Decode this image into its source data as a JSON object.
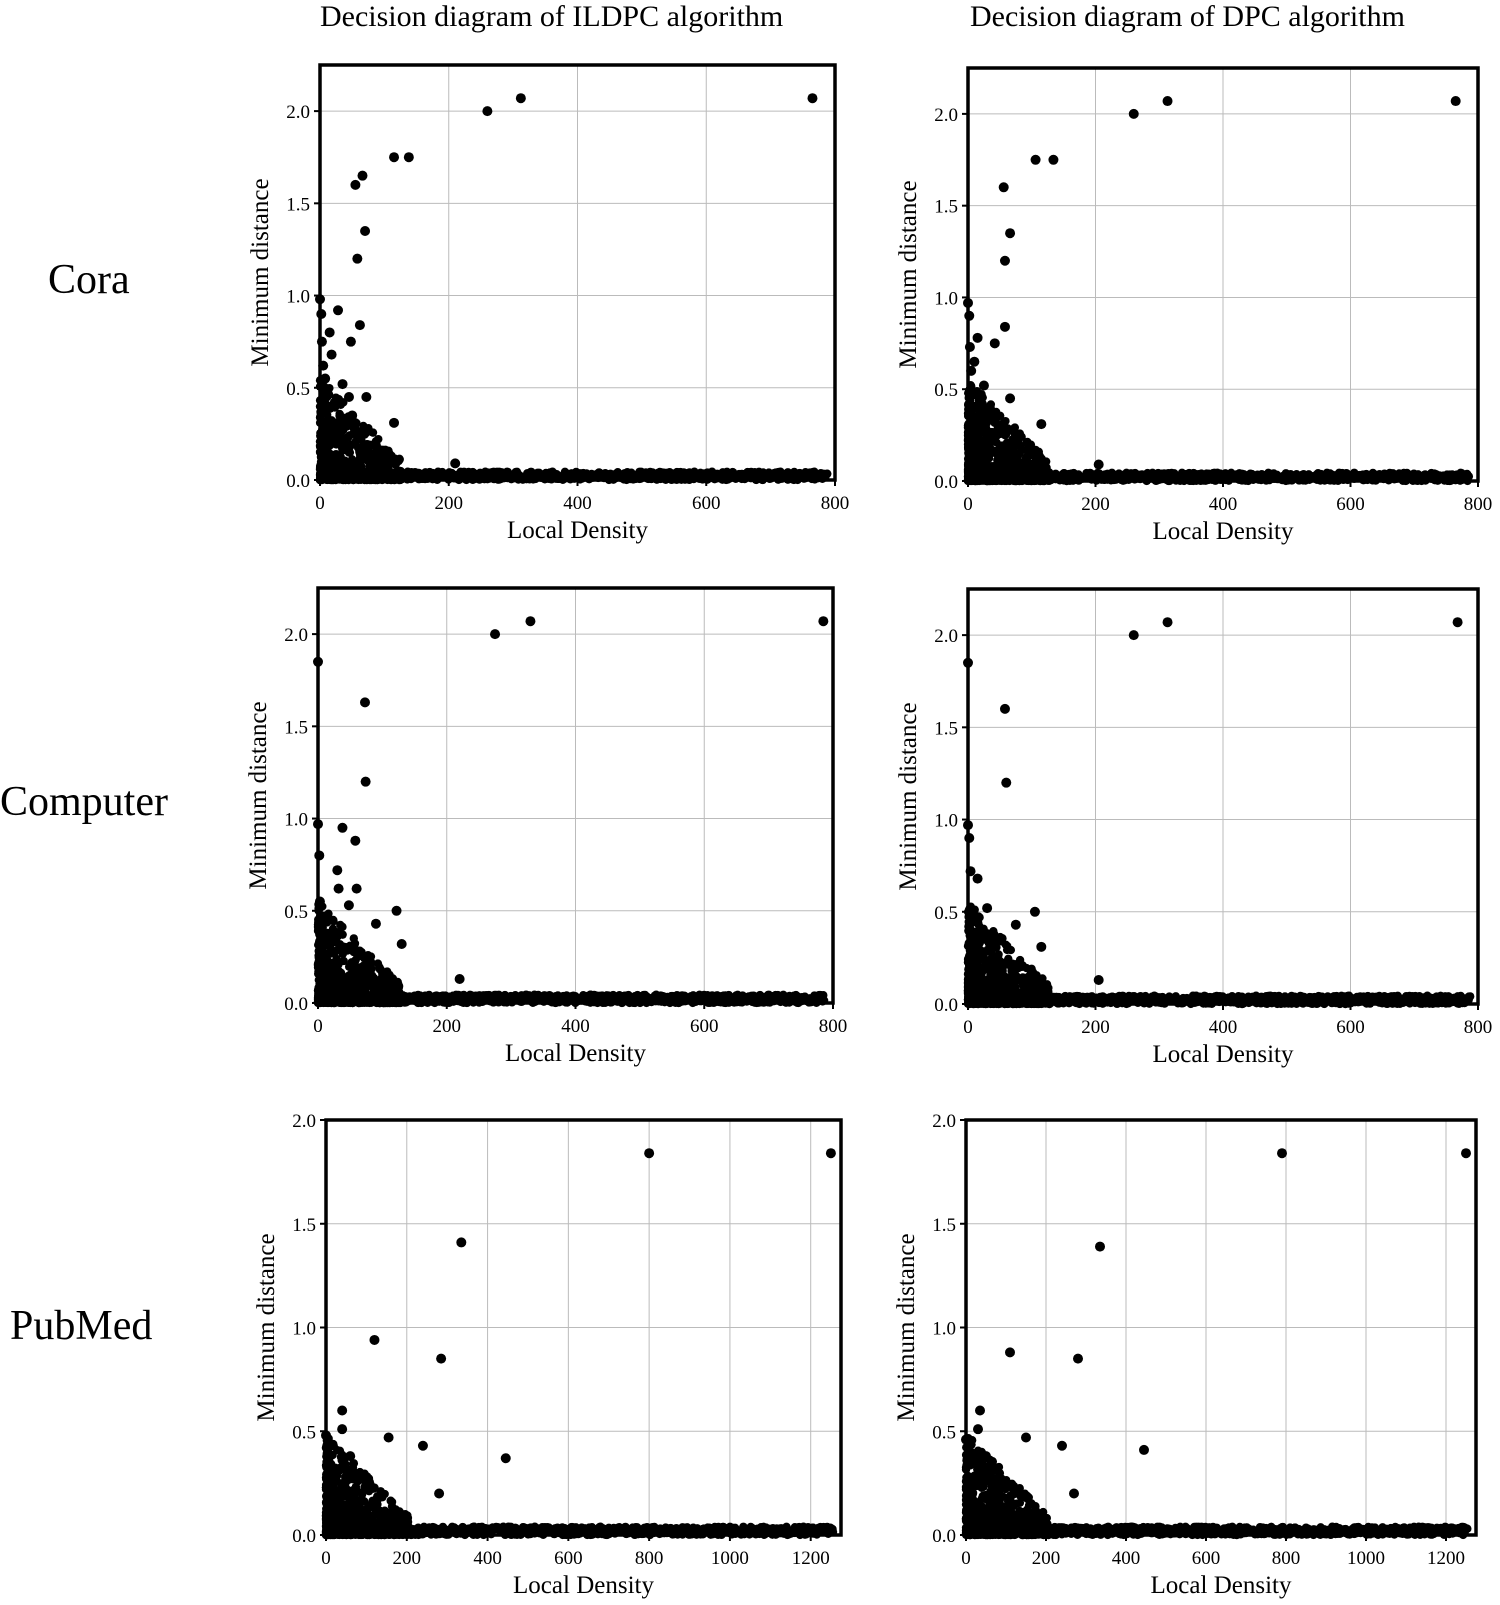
{
  "columns": [
    "Decision diagram of ILDPC algorithm",
    "Decision diagram of DPC algorithm"
  ],
  "rows": [
    "Cora",
    "Computer",
    "PubMed"
  ],
  "colors": {
    "point": "#000000",
    "grid": "#bbbbbb",
    "frame": "#000000"
  },
  "chart_data": [
    {
      "type": "scatter",
      "row": "Cora",
      "column": "Decision diagram of ILDPC algorithm",
      "xlabel": "Local Density",
      "ylabel": "Minimum distance",
      "xlim": [
        0,
        800
      ],
      "ylim": [
        0,
        2.25
      ],
      "xticks": [
        0,
        200,
        400,
        600,
        800
      ],
      "xtick_labels": [
        "0",
        "200",
        "400",
        "600",
        "800"
      ],
      "yticks": [
        0,
        0.5,
        1.0,
        1.5,
        2.0
      ],
      "ytick_labels": [
        "0.0",
        "0.5",
        "1.0",
        "1.5",
        "2.0"
      ],
      "grid": true,
      "points": [
        [
          0,
          0.98
        ],
        [
          2,
          0.9
        ],
        [
          3,
          0.75
        ],
        [
          5,
          0.62
        ],
        [
          8,
          0.55
        ],
        [
          15,
          0.8
        ],
        [
          18,
          0.68
        ],
        [
          28,
          0.92
        ],
        [
          48,
          0.75
        ],
        [
          55,
          1.6
        ],
        [
          58,
          1.2
        ],
        [
          62,
          0.84
        ],
        [
          66,
          1.65
        ],
        [
          70,
          1.35
        ],
        [
          72,
          0.45
        ],
        [
          45,
          0.45
        ],
        [
          50,
          0.35
        ],
        [
          35,
          0.52
        ],
        [
          115,
          0.31
        ],
        [
          115,
          1.75
        ],
        [
          138,
          1.75
        ],
        [
          210,
          0.09
        ],
        [
          260,
          2.0
        ],
        [
          312,
          2.07
        ],
        [
          765,
          2.07
        ]
      ]
    },
    {
      "type": "scatter",
      "row": "Cora",
      "column": "Decision diagram of DPC algorithm",
      "xlabel": "Local Density",
      "ylabel": "Minimum distance",
      "xlim": [
        0,
        800
      ],
      "ylim": [
        0,
        2.25
      ],
      "xticks": [
        0,
        200,
        400,
        600,
        800
      ],
      "xtick_labels": [
        "0",
        "200",
        "400",
        "600",
        "800"
      ],
      "yticks": [
        0,
        0.5,
        1.0,
        1.5,
        2.0
      ],
      "ytick_labels": [
        "0.0",
        "0.5",
        "1.0",
        "1.5",
        "2.0"
      ],
      "grid": true,
      "points": [
        [
          0,
          0.97
        ],
        [
          2,
          0.9
        ],
        [
          3,
          0.73
        ],
        [
          5,
          0.6
        ],
        [
          10,
          0.65
        ],
        [
          15,
          0.78
        ],
        [
          25,
          0.52
        ],
        [
          42,
          0.75
        ],
        [
          56,
          1.6
        ],
        [
          58,
          1.2
        ],
        [
          58,
          0.84
        ],
        [
          66,
          1.35
        ],
        [
          66,
          0.45
        ],
        [
          106,
          1.75
        ],
        [
          134,
          1.75
        ],
        [
          115,
          0.31
        ],
        [
          205,
          0.09
        ],
        [
          260,
          2.0
        ],
        [
          313,
          2.07
        ],
        [
          765,
          2.07
        ]
      ]
    },
    {
      "type": "scatter",
      "row": "Computer",
      "column": "Decision diagram of ILDPC algorithm",
      "xlabel": "Local Density",
      "ylabel": "Minimum distance",
      "xlim": [
        0,
        800
      ],
      "ylim": [
        0,
        2.25
      ],
      "xticks": [
        0,
        200,
        400,
        600,
        800
      ],
      "xtick_labels": [
        "0",
        "200",
        "400",
        "600",
        "800"
      ],
      "yticks": [
        0,
        0.5,
        1.0,
        1.5,
        2.0
      ],
      "ytick_labels": [
        "0.0",
        "0.5",
        "1.0",
        "1.5",
        "2.0"
      ],
      "grid": true,
      "points": [
        [
          0,
          1.85
        ],
        [
          0,
          0.97
        ],
        [
          2,
          0.8
        ],
        [
          3,
          0.55
        ],
        [
          30,
          0.72
        ],
        [
          32,
          0.62
        ],
        [
          38,
          0.95
        ],
        [
          48,
          0.53
        ],
        [
          58,
          0.88
        ],
        [
          60,
          0.62
        ],
        [
          73,
          1.63
        ],
        [
          74,
          1.2
        ],
        [
          90,
          0.43
        ],
        [
          122,
          0.5
        ],
        [
          130,
          0.32
        ],
        [
          110,
          0.15
        ],
        [
          220,
          0.13
        ],
        [
          275,
          2.0
        ],
        [
          330,
          2.07
        ],
        [
          785,
          2.07
        ]
      ]
    },
    {
      "type": "scatter",
      "row": "Computer",
      "column": "Decision diagram of DPC algorithm",
      "xlabel": "Local Density",
      "ylabel": "Minimum distance",
      "xlim": [
        0,
        800
      ],
      "ylim": [
        0,
        2.25
      ],
      "xticks": [
        0,
        200,
        400,
        600,
        800
      ],
      "xtick_labels": [
        "0",
        "200",
        "400",
        "600",
        "800"
      ],
      "yticks": [
        0,
        0.5,
        1.0,
        1.5,
        2.0
      ],
      "ytick_labels": [
        "0.0",
        "0.5",
        "1.0",
        "1.5",
        "2.0"
      ],
      "grid": true,
      "points": [
        [
          0,
          1.85
        ],
        [
          0,
          0.97
        ],
        [
          2,
          0.9
        ],
        [
          4,
          0.72
        ],
        [
          15,
          0.68
        ],
        [
          30,
          0.52
        ],
        [
          58,
          1.6
        ],
        [
          60,
          1.2
        ],
        [
          75,
          0.43
        ],
        [
          105,
          0.5
        ],
        [
          115,
          0.31
        ],
        [
          100,
          0.17
        ],
        [
          205,
          0.13
        ],
        [
          260,
          2.0
        ],
        [
          313,
          2.07
        ],
        [
          768,
          2.07
        ]
      ]
    },
    {
      "type": "scatter",
      "row": "PubMed",
      "column": "Decision diagram of ILDPC algorithm",
      "xlabel": "Local Density",
      "ylabel": "Minimum distance",
      "xlim": [
        0,
        1275
      ],
      "ylim": [
        0,
        2.0
      ],
      "xticks": [
        0,
        200,
        400,
        600,
        800,
        1000,
        1200
      ],
      "xtick_labels": [
        "0",
        "200",
        "400",
        "600",
        "800",
        "1000",
        "1200"
      ],
      "yticks": [
        0,
        0.5,
        1.0,
        1.5,
        2.0
      ],
      "ytick_labels": [
        "0.0",
        "0.5",
        "1.0",
        "1.5",
        "2.0"
      ],
      "grid": true,
      "points": [
        [
          0,
          0.48
        ],
        [
          5,
          0.42
        ],
        [
          40,
          0.6
        ],
        [
          40,
          0.51
        ],
        [
          60,
          0.38
        ],
        [
          120,
          0.94
        ],
        [
          155,
          0.47
        ],
        [
          240,
          0.43
        ],
        [
          280,
          0.2
        ],
        [
          285,
          0.85
        ],
        [
          335,
          1.41
        ],
        [
          445,
          0.37
        ],
        [
          800,
          1.84
        ],
        [
          1250,
          1.84
        ]
      ]
    },
    {
      "type": "scatter",
      "row": "PubMed",
      "column": "Decision diagram of DPC algorithm",
      "xlabel": "Local Density",
      "ylabel": "Minimum distance",
      "xlim": [
        0,
        1275
      ],
      "ylim": [
        0,
        2.0
      ],
      "xticks": [
        0,
        200,
        400,
        600,
        800,
        1000,
        1200
      ],
      "xtick_labels": [
        "0",
        "200",
        "400",
        "600",
        "800",
        "1000",
        "1200"
      ],
      "yticks": [
        0,
        0.5,
        1.0,
        1.5,
        2.0
      ],
      "ytick_labels": [
        "0.0",
        "0.5",
        "1.0",
        "1.5",
        "2.0"
      ],
      "grid": true,
      "points": [
        [
          0,
          0.46
        ],
        [
          5,
          0.42
        ],
        [
          35,
          0.6
        ],
        [
          30,
          0.51
        ],
        [
          50,
          0.38
        ],
        [
          110,
          0.88
        ],
        [
          150,
          0.47
        ],
        [
          240,
          0.43
        ],
        [
          270,
          0.2
        ],
        [
          280,
          0.85
        ],
        [
          335,
          1.39
        ],
        [
          445,
          0.41
        ],
        [
          790,
          1.84
        ],
        [
          1250,
          1.84
        ]
      ]
    }
  ]
}
